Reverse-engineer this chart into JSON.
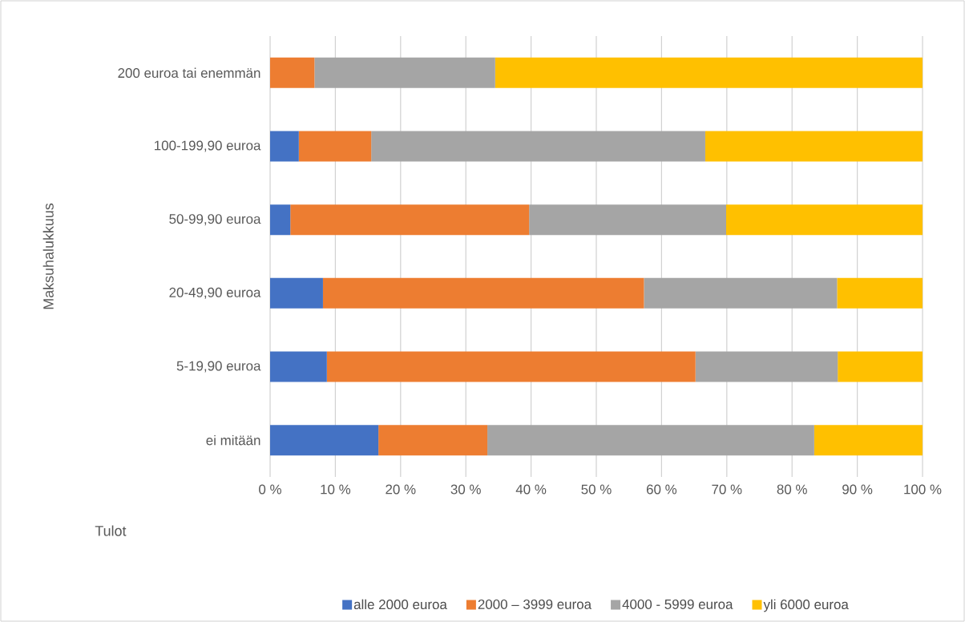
{
  "chart_data": {
    "type": "bar",
    "orientation": "horizontal",
    "stacked": true,
    "xlabel": "Tulot",
    "ylabel": "Maksuhalukkuus",
    "categories": [
      "200 euroa tai enemmän",
      "100-199,90 euroa",
      "50-99,90 euroa",
      "20-49,90 euroa",
      "5-19,90 euroa",
      "ei mitään"
    ],
    "series": [
      {
        "name": "alle 2000 euroa",
        "color": "#4472c4",
        "values": [
          0,
          4.4,
          3.1,
          8.1,
          8.7,
          16.6
        ]
      },
      {
        "name": "2000 – 3999 euroa",
        "color": "#ed7d31",
        "values": [
          6.8,
          11.1,
          36.6,
          49.2,
          56.5,
          16.7
        ]
      },
      {
        "name": "4000 - 5999 euroa",
        "color": "#a5a5a5",
        "values": [
          27.7,
          51.2,
          30.2,
          29.6,
          21.8,
          50.1
        ]
      },
      {
        "name": "yli 6000 euroa",
        "color": "#ffc000",
        "values": [
          65.5,
          33.3,
          30.1,
          13.1,
          13.0,
          16.6
        ]
      }
    ],
    "xlim": [
      0,
      100
    ],
    "xticks": [
      {
        "value": 0,
        "label": "0 %"
      },
      {
        "value": 10,
        "label": "10 %"
      },
      {
        "value": 20,
        "label": "20 %"
      },
      {
        "value": 30,
        "label": "30 %"
      },
      {
        "value": 40,
        "label": "40 %"
      },
      {
        "value": 50,
        "label": "50 %"
      },
      {
        "value": 60,
        "label": "60 %"
      },
      {
        "value": 70,
        "label": "70 %"
      },
      {
        "value": 80,
        "label": "80 %"
      },
      {
        "value": 90,
        "label": "90 %"
      },
      {
        "value": 100,
        "label": "100 %"
      }
    ],
    "grid": "x",
    "legend": "bottom"
  }
}
